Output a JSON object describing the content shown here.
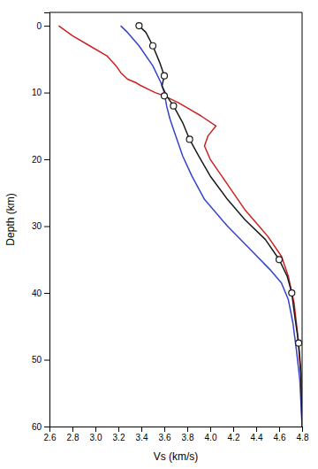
{
  "chart_data": {
    "type": "line",
    "xlabel": "Vs (km/s)",
    "ylabel": "Depth (km)",
    "xlim": [
      2.6,
      4.8
    ],
    "ylim": [
      60,
      -2
    ],
    "xticks": [
      2.6,
      2.8,
      {
        "value": 3.0,
        "label": "3.0"
      },
      3.2,
      3.4,
      3.6,
      3.8,
      {
        "value": 4.0,
        "label": "4.0"
      },
      4.2,
      4.4,
      4.6,
      4.8
    ],
    "yticks": [
      0,
      10,
      20,
      30,
      40,
      50,
      60
    ],
    "series": [
      {
        "color": "#cc2222",
        "x": [
          2.68,
          2.72,
          2.8,
          2.95,
          3.1,
          3.18,
          3.22,
          3.28,
          3.35,
          3.4,
          3.46,
          3.52,
          3.6,
          3.72,
          3.82,
          3.92,
          4.05,
          3.98,
          3.95,
          4.0,
          4.1,
          4.3,
          4.5,
          4.62,
          4.68,
          4.73,
          4.76,
          4.79,
          4.8
        ],
        "values": [
          0.0,
          0.5,
          1.5,
          3.0,
          4.5,
          6.0,
          7.0,
          8.0,
          8.5,
          9.0,
          9.5,
          10.0,
          10.5,
          11.5,
          12.5,
          13.5,
          15.0,
          16.5,
          18.0,
          20.0,
          22.5,
          27.5,
          31.5,
          34.5,
          37.5,
          41.5,
          46.0,
          52.5,
          60.0
        ]
      },
      {
        "color": "#3344cc",
        "x": [
          3.22,
          3.28,
          3.38,
          3.5,
          3.57,
          3.6,
          3.62,
          3.65,
          3.7,
          3.76,
          3.84,
          3.95,
          4.15,
          4.35,
          4.52,
          4.62,
          4.68,
          4.72,
          4.75,
          4.78,
          4.8
        ],
        "values": [
          0.0,
          1.0,
          3.0,
          6.0,
          8.5,
          10.0,
          12.0,
          14.0,
          16.5,
          19.5,
          22.5,
          26.0,
          30.0,
          33.5,
          36.5,
          38.5,
          41.0,
          44.5,
          48.5,
          53.0,
          60.0
        ]
      },
      {
        "color": "#1a1a1a",
        "x": [
          3.38,
          3.44,
          3.5,
          3.56,
          3.6,
          3.58,
          3.62,
          3.68,
          3.76,
          3.82,
          3.9,
          4.0,
          4.15,
          4.3,
          4.48,
          4.6,
          4.67,
          4.71,
          4.74,
          4.77,
          4.79,
          4.8
        ],
        "values": [
          0.0,
          1.0,
          3.0,
          5.5,
          7.5,
          9.0,
          10.5,
          12.0,
          14.5,
          17.0,
          19.5,
          22.5,
          26.0,
          29.0,
          32.0,
          35.0,
          37.5,
          40.0,
          44.0,
          47.5,
          52.0,
          60.0
        ]
      },
      {
        "type": "scatter",
        "marker": "circle",
        "color": "#1a1a1a",
        "x": [
          3.38,
          3.5,
          3.6,
          3.6,
          3.68,
          3.82,
          4.6,
          4.71,
          4.77
        ],
        "values": [
          0.0,
          3.0,
          7.5,
          10.5,
          12.0,
          17.0,
          35.0,
          40.0,
          47.5
        ]
      }
    ]
  }
}
